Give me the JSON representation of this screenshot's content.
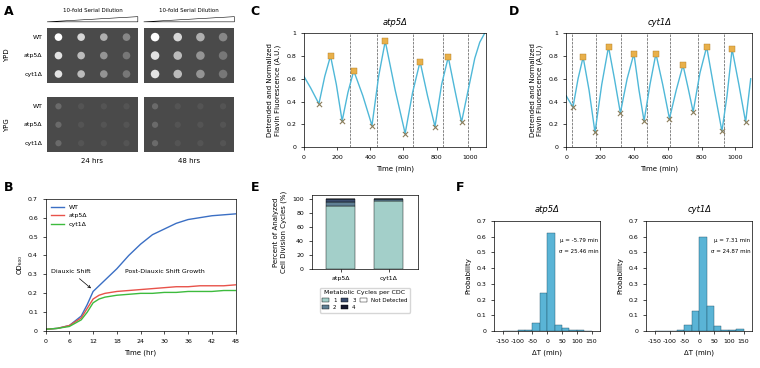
{
  "spot_assay": {
    "panel": "A",
    "header": "10-fold Serial Dilution",
    "media": [
      "YPD",
      "YPG"
    ],
    "strains": [
      "WT",
      "atp5Δ",
      "cyt1Δ"
    ],
    "times": [
      "24 hrs",
      "48 hrs"
    ]
  },
  "chart_data": [
    {
      "panel": "B",
      "type": "line",
      "x_label": "Time (hr)",
      "y_label": "OD₆₀₀",
      "x": [
        0,
        3,
        6,
        9,
        10.5,
        12,
        13.5,
        15,
        18,
        21,
        24,
        27,
        30,
        33,
        36,
        39,
        42,
        45,
        48
      ],
      "series": [
        {
          "name": "WT",
          "color": "#3b6fc4",
          "values": [
            0.01,
            0.015,
            0.03,
            0.08,
            0.14,
            0.21,
            0.24,
            0.27,
            0.33,
            0.4,
            0.46,
            0.51,
            0.54,
            0.57,
            0.59,
            0.6,
            0.61,
            0.615,
            0.62
          ]
        },
        {
          "name": "atp5Δ",
          "color": "#e8524a",
          "values": [
            0.01,
            0.015,
            0.03,
            0.07,
            0.12,
            0.17,
            0.19,
            0.2,
            0.21,
            0.215,
            0.22,
            0.225,
            0.23,
            0.235,
            0.235,
            0.24,
            0.24,
            0.24,
            0.245
          ]
        },
        {
          "name": "cyt1Δ",
          "color": "#3dbb3d",
          "values": [
            0.01,
            0.015,
            0.025,
            0.06,
            0.1,
            0.15,
            0.17,
            0.18,
            0.19,
            0.195,
            0.2,
            0.2,
            0.205,
            0.205,
            0.21,
            0.21,
            0.21,
            0.215,
            0.215
          ]
        }
      ],
      "xlim": [
        0,
        48
      ],
      "xticks": [
        0,
        6,
        12,
        18,
        24,
        30,
        36,
        42,
        48
      ],
      "ylim": [
        0,
        0.7
      ],
      "yticks": [
        0,
        0.1,
        0.2,
        0.3,
        0.4,
        0.5,
        0.6,
        0.7
      ],
      "legend": "upper left",
      "annotations": [
        "Diauxic Shift",
        "Post-Diauxic Shift Growth"
      ]
    },
    {
      "panel": "C",
      "type": "oscillation",
      "title": "atp5Δ",
      "x_label": "Time (min)",
      "y_label": "Detrended and Normalized\nFlavin Fluorescence (A.U.)",
      "x": [
        0,
        40,
        90,
        125,
        160,
        195,
        230,
        265,
        300,
        355,
        410,
        450,
        490,
        550,
        610,
        655,
        700,
        745,
        790,
        830,
        870,
        910,
        950,
        990,
        1030,
        1060,
        1090
      ],
      "values": [
        0.62,
        0.52,
        0.38,
        0.62,
        0.8,
        0.55,
        0.23,
        0.48,
        0.67,
        0.45,
        0.19,
        0.62,
        0.93,
        0.5,
        0.12,
        0.48,
        0.75,
        0.45,
        0.18,
        0.55,
        0.79,
        0.5,
        0.22,
        0.5,
        0.78,
        0.92,
        1.0
      ],
      "color": "#4fb8d8",
      "peaks": {
        "x": [
          160,
          300,
          490,
          700,
          870
        ],
        "values": [
          0.8,
          0.67,
          0.93,
          0.75,
          0.79
        ],
        "color": "#e8b04a",
        "marker": "square"
      },
      "troughs": {
        "x": [
          90,
          230,
          410,
          610,
          790,
          950
        ],
        "values": [
          0.38,
          0.23,
          0.19,
          0.12,
          0.18,
          0.22
        ],
        "color": "#8b7d5a",
        "marker": "x"
      },
      "divisions": {
        "x": [
          280,
          440,
          660,
          840,
          990
        ],
        "color": "#555555",
        "line_style": "dashed"
      },
      "xlim": [
        0,
        1100
      ],
      "xticks": [
        0,
        200,
        400,
        600,
        800,
        1000
      ],
      "ylim": [
        0,
        1
      ],
      "yticks": [
        0,
        0.2,
        0.4,
        0.6,
        0.8,
        1
      ]
    },
    {
      "panel": "D",
      "type": "oscillation",
      "title": "cyt1Δ",
      "x_label": "Time (min)",
      "y_label": "Detrended and Normalized\nFlavin Fluorescence (A.U.)",
      "x": [
        0,
        40,
        70,
        100,
        135,
        170,
        210,
        250,
        285,
        320,
        360,
        400,
        430,
        460,
        495,
        530,
        570,
        610,
        650,
        690,
        720,
        750,
        790,
        830,
        875,
        920,
        950,
        980,
        1020,
        1060,
        1090
      ],
      "values": [
        0.45,
        0.35,
        0.6,
        0.79,
        0.5,
        0.13,
        0.55,
        0.88,
        0.6,
        0.3,
        0.6,
        0.82,
        0.5,
        0.23,
        0.55,
        0.82,
        0.55,
        0.25,
        0.5,
        0.72,
        0.52,
        0.31,
        0.65,
        0.88,
        0.5,
        0.14,
        0.45,
        0.86,
        0.55,
        0.22,
        0.6
      ],
      "color": "#4fb8d8",
      "peaks": {
        "x": [
          100,
          250,
          400,
          530,
          690,
          830,
          980
        ],
        "values": [
          0.79,
          0.88,
          0.82,
          0.82,
          0.72,
          0.88,
          0.86
        ],
        "color": "#e8b04a",
        "marker": "square"
      },
      "troughs": {
        "x": [
          40,
          170,
          320,
          460,
          610,
          750,
          920,
          1060
        ],
        "values": [
          0.35,
          0.13,
          0.3,
          0.23,
          0.25,
          0.31,
          0.14,
          0.22
        ],
        "color": "#8b7d5a",
        "marker": "x"
      },
      "divisions": {
        "x": [
          35,
          175,
          325,
          480,
          615,
          780,
          930
        ],
        "color": "#555555",
        "line_style": "dashed"
      },
      "xlim": [
        0,
        1100
      ],
      "xticks": [
        0,
        200,
        400,
        600,
        800,
        1000
      ],
      "ylim": [
        0,
        1
      ],
      "yticks": [
        0,
        0.2,
        0.4,
        0.6,
        0.8,
        1
      ]
    },
    {
      "panel": "E",
      "type": "bar",
      "stacked": true,
      "categories": [
        "atp5Δ",
        "cyt1Δ"
      ],
      "y_label": "Percent of Analyzed\nCell Division Cycles (%)",
      "series": [
        {
          "name": "1",
          "color": "#a3cfc9",
          "values": [
            89,
            96
          ]
        },
        {
          "name": "2",
          "color": "#5f7f94",
          "values": [
            6,
            3
          ]
        },
        {
          "name": "3",
          "color": "#3b4d6e",
          "values": [
            4,
            1
          ]
        },
        {
          "name": "4",
          "color": "#16192e",
          "values": [
            1,
            0
          ]
        },
        {
          "name": "Not Detected",
          "color": "#ffffff",
          "values": [
            0,
            0
          ]
        }
      ],
      "ylim": [
        0,
        105
      ],
      "yticks": [
        0,
        20,
        40,
        60,
        80,
        100
      ],
      "legend": "upper center",
      "legend_title": "Metabolic Cycles per CDC"
    },
    {
      "panel": "F",
      "type": "histogram",
      "title": "atp5Δ",
      "x_label": "ΔT (min)",
      "y_label": "Probability",
      "bins": [
        -150,
        -125,
        -100,
        -75,
        -50,
        -25,
        0,
        25,
        50,
        75,
        100,
        125,
        150
      ],
      "counts": [
        0,
        0,
        0.005,
        0.01,
        0.05,
        0.24,
        0.62,
        0.04,
        0.02,
        0.01,
        0.005,
        0
      ],
      "color": "#5ab4d6",
      "annotations": [
        "μ = -5.79 min",
        "σ = 25.46 min"
      ],
      "xlim": [
        -180,
        180
      ],
      "xticks": [
        -150,
        -100,
        -50,
        0,
        50,
        100,
        150
      ],
      "ylim": [
        0,
        0.7
      ],
      "yticks": [
        0,
        0.1,
        0.2,
        0.3,
        0.4,
        0.5,
        0.6,
        0.7
      ]
    },
    {
      "type": "histogram",
      "title": "cyt1Δ",
      "x_label": "ΔT (min)",
      "y_label": "Probability",
      "bins": [
        -150,
        -125,
        -100,
        -75,
        -50,
        -25,
        0,
        25,
        50,
        75,
        100,
        125,
        150
      ],
      "counts": [
        0,
        0,
        0,
        0.005,
        0.04,
        0.13,
        0.6,
        0.16,
        0.03,
        0.01,
        0.01,
        0.015
      ],
      "color": "#5ab4d6",
      "annotations": [
        "μ = 7.31 min",
        "σ = 24.87 min"
      ],
      "xlim": [
        -180,
        180
      ],
      "xticks": [
        -150,
        -100,
        -50,
        0,
        50,
        100,
        150
      ],
      "ylim": [
        0,
        0.7
      ],
      "yticks": [
        0,
        0.1,
        0.2,
        0.3,
        0.4,
        0.5,
        0.6,
        0.7
      ]
    }
  ]
}
